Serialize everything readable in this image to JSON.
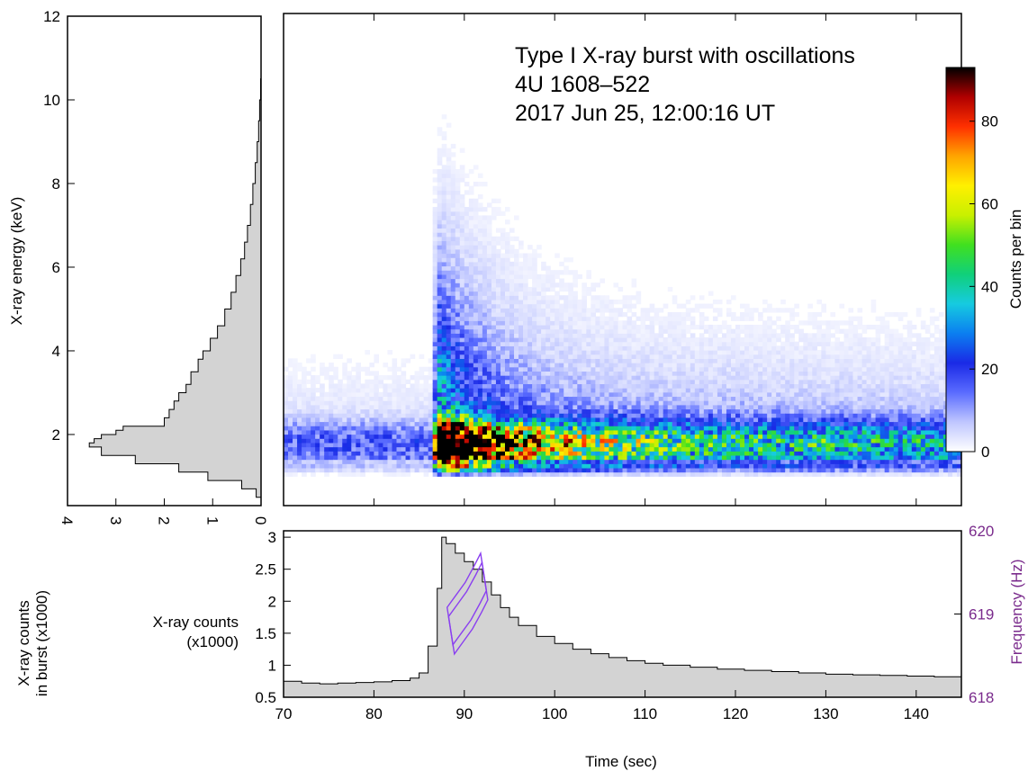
{
  "colors": {
    "axis": "#000000",
    "histogram_fill": "#d3d3d3",
    "frequency_axis": "#7a2b8c",
    "contour": "#8a3ff0"
  },
  "chart_data": [
    {
      "id": "dynamic-spectrum",
      "type": "heatmap",
      "title_lines": [
        "Type I X-ray burst with oscillations",
        "4U 1608–522",
        "2017 Jun 25, 12:00:16 UT"
      ],
      "xlim": [
        70,
        145
      ],
      "ylim": [
        0.3,
        12
      ],
      "x_ticks": [
        70,
        80,
        90,
        100,
        110,
        120,
        130,
        140
      ],
      "colorbar": {
        "label": "Counts per bin",
        "range": [
          0,
          93
        ],
        "ticks": [
          0,
          20,
          40,
          60,
          80
        ],
        "colormap": [
          "#ffffff",
          "#bfc6ff",
          "#5a6cff",
          "#1a2ae6",
          "#0b7ff0",
          "#16cbe0",
          "#10d07a",
          "#40e020",
          "#c8f000",
          "#fff000",
          "#ffa500",
          "#ff3000",
          "#b00000",
          "#000000"
        ]
      },
      "peak_counts": 93
    },
    {
      "id": "energy-spectrum",
      "type": "area",
      "ylabel": "X-ray energy (keV)",
      "xlabel_rotated": "X-ray counts in burst (x1000)",
      "xlim": [
        0,
        4
      ],
      "ylim": [
        0.3,
        12
      ],
      "x_ticks": [
        4,
        3,
        2,
        1,
        0
      ],
      "y_ticks": [
        2,
        4,
        6,
        8,
        10,
        12
      ],
      "energy": [
        0.5,
        0.7,
        0.9,
        1.1,
        1.3,
        1.5,
        1.7,
        1.8,
        1.9,
        2.0,
        2.1,
        2.2,
        2.4,
        2.6,
        2.8,
        3.0,
        3.2,
        3.5,
        3.8,
        4.0,
        4.3,
        4.6,
        5.0,
        5.4,
        5.8,
        6.2,
        6.6,
        7.0,
        7.5,
        8.0,
        8.5,
        9.0,
        9.5,
        10.0
      ],
      "counts_x1000": [
        0.1,
        0.4,
        1.1,
        1.7,
        2.6,
        3.3,
        3.55,
        3.45,
        3.3,
        3.0,
        2.85,
        2.0,
        1.9,
        1.8,
        1.7,
        1.55,
        1.45,
        1.3,
        1.2,
        1.05,
        0.9,
        0.75,
        0.62,
        0.52,
        0.42,
        0.34,
        0.28,
        0.22,
        0.17,
        0.12,
        0.08,
        0.05,
        0.03,
        0.01
      ]
    },
    {
      "id": "light-curve",
      "type": "area",
      "xlabel": "Time (sec)",
      "ylabel": "X-ray counts (x1000)",
      "ylabel2": "Frequency (Hz)",
      "xlim": [
        70,
        145
      ],
      "ylim": [
        0.5,
        3.1
      ],
      "ylim2": [
        618,
        620
      ],
      "x_ticks": [
        70,
        80,
        90,
        100,
        110,
        120,
        130,
        140
      ],
      "y_ticks": [
        0.5,
        1,
        1.5,
        2,
        2.5,
        3
      ],
      "y2_ticks": [
        618,
        619,
        620
      ],
      "time": [
        70,
        72,
        74,
        76,
        78,
        80,
        82,
        84,
        85,
        86,
        87,
        87.5,
        88,
        89,
        90,
        91,
        92,
        93,
        94,
        95,
        96,
        98,
        100,
        102,
        104,
        106,
        108,
        110,
        112,
        115,
        118,
        121,
        124,
        127,
        130,
        133,
        136,
        139,
        142,
        145
      ],
      "counts_x1000": [
        0.75,
        0.72,
        0.71,
        0.72,
        0.73,
        0.74,
        0.76,
        0.8,
        0.88,
        1.3,
        2.2,
        3.0,
        2.9,
        2.75,
        2.62,
        2.5,
        2.3,
        2.1,
        1.9,
        1.75,
        1.62,
        1.45,
        1.34,
        1.25,
        1.18,
        1.12,
        1.07,
        1.03,
        1.0,
        0.97,
        0.94,
        0.92,
        0.9,
        0.88,
        0.86,
        0.85,
        0.84,
        0.83,
        0.82,
        0.8
      ],
      "oscillation_contour_hz": {
        "time": [
          88.5,
          89.5,
          90.5,
          91.5,
          92.2
        ],
        "frequency": [
          618.8,
          618.95,
          619.1,
          619.3,
          619.45
        ]
      }
    }
  ]
}
